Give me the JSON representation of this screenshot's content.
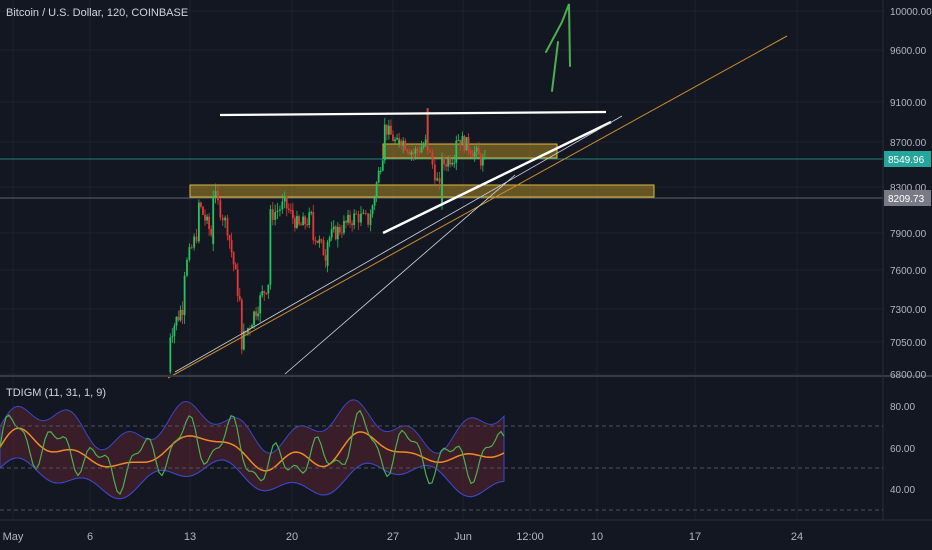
{
  "header": {
    "title": "Bitcoin / U.S. Dollar, 120, COINBASE"
  },
  "indicator": {
    "label": "TDIGM (11, 31, 1, 9)"
  },
  "chart_data": [
    {
      "type": "candlestick",
      "title": "Bitcoin / U.S. Dollar, 120, COINBASE",
      "y_ticks": [
        "10000.00",
        "9600.00",
        "9100.00",
        "8700.00",
        "8300.00",
        "7900.00",
        "7600.00",
        "7300.00",
        "7050.00",
        "6800.00"
      ],
      "x_ticks": [
        "May",
        "6",
        "13",
        "20",
        "27",
        "Jun",
        "12:00",
        "10",
        "17",
        "24"
      ],
      "price_labels": [
        {
          "value": "8549.96",
          "color": "#26a69a"
        },
        {
          "value": "8209.73",
          "color": "#787b86"
        }
      ],
      "price_path": [
        [
          "May 12",
          6820
        ],
        [
          "May 12",
          7120
        ],
        [
          "May 13",
          7350
        ],
        [
          "May 13",
          7600
        ],
        [
          "May 14",
          7950
        ],
        [
          "May 14",
          8150
        ],
        [
          "May 15",
          7850
        ],
        [
          "May 15",
          8250
        ],
        [
          "May 16",
          7950
        ],
        [
          "May 17",
          7250
        ],
        [
          "May 17",
          7050
        ],
        [
          "May 18",
          7300
        ],
        [
          "May 19",
          7550
        ],
        [
          "May 19",
          8050
        ],
        [
          "May 20",
          8150
        ],
        [
          "May 21",
          7950
        ],
        [
          "May 22",
          8050
        ],
        [
          "May 22",
          7900
        ],
        [
          "May 23",
          7700
        ],
        [
          "May 23",
          7850
        ],
        [
          "May 24",
          7950
        ],
        [
          "May 25",
          8050
        ],
        [
          "May 26",
          8000
        ],
        [
          "May 26",
          8050
        ],
        [
          "May 27",
          8700
        ],
        [
          "May 27",
          8850
        ],
        [
          "May 28",
          8650
        ],
        [
          "May 28",
          8750
        ],
        [
          "May 29",
          8600
        ],
        [
          "May 30",
          8700
        ],
        [
          "May 30",
          9000
        ],
        [
          "May 30",
          8650
        ],
        [
          "May 31",
          8200
        ],
        [
          "May 31",
          8500
        ],
        [
          "Jun 1",
          8600
        ],
        [
          "Jun 1",
          8750
        ],
        [
          "Jun 2",
          8650
        ],
        [
          "Jun 3",
          8500
        ],
        [
          "Jun 3",
          8550
        ]
      ],
      "zones": [
        {
          "from": 8230,
          "to": 8300
        },
        {
          "from": 8560,
          "to": 8690
        }
      ],
      "horizontal_lines": [
        8549.96,
        8209.73
      ]
    },
    {
      "type": "line",
      "title": "TDIGM (11, 31, 1, 9)",
      "y_ticks": [
        "80.00",
        "60.00",
        "40.00"
      ],
      "ylim": [
        30,
        87
      ]
    }
  ]
}
